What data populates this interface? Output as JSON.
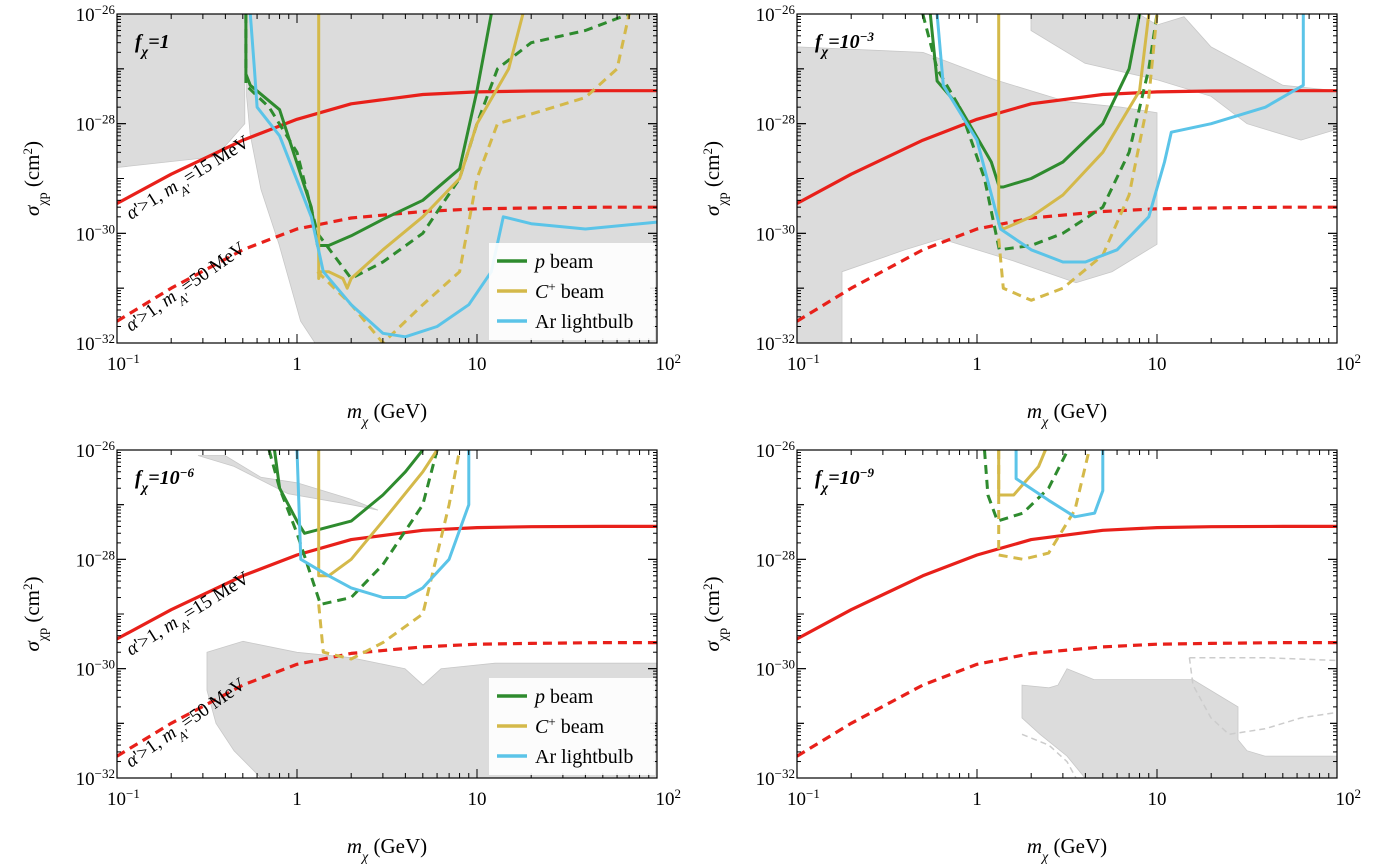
{
  "figure": {
    "xlabel": "m_χ (GeV)",
    "ylabel": "σ_χp (cm²)"
  },
  "legend": {
    "items": [
      {
        "name": "p beam",
        "color": "#2e8b2e"
      },
      {
        "name": "C⁺ beam",
        "color": "#d4b94a"
      },
      {
        "name": "Ar lightbulb",
        "color": "#5bc4e8"
      }
    ]
  },
  "colors": {
    "excluded_region": "#dcdcdc",
    "red_curve": "#e8201a",
    "green": "#2e8b2e",
    "gold": "#d4b94a",
    "blue": "#5bc4e8",
    "faint_dashed": "#cccccc"
  },
  "chart_data": [
    {
      "type": "line",
      "panel_label": "f_χ=1",
      "x_scale": "log",
      "y_scale": "log",
      "xlim": [
        0.1,
        100
      ],
      "ylim": [
        1e-32,
        1e-26
      ],
      "xticks": [
        "10^-1",
        "1",
        "10",
        "10^2"
      ],
      "yticks": [
        "10^-32",
        "10^-30",
        "10^-28",
        "10^-26"
      ],
      "xlabel": "m_χ (GeV)",
      "ylabel": "σ_χp (cm²)",
      "show_legend": true,
      "show_curve_labels": true,
      "curve_labels": [
        "α'>1, m_A'=15 MeV",
        "α'>1, m_A'=50 MeV"
      ],
      "series": [
        {
          "name": "α'>1, m_A'=15 MeV",
          "color": "#e8201a",
          "style": "solid",
          "x": [
            0.1,
            0.2,
            0.5,
            1,
            2,
            5,
            10,
            20,
            50,
            100
          ],
          "y": [
            3.5e-30,
            1.2e-29,
            5e-29,
            1.2e-28,
            2.3e-28,
            3.4e-28,
            3.8e-28,
            3.95e-28,
            4e-28,
            4e-28
          ]
        },
        {
          "name": "α'>1, m_A'=50 MeV",
          "color": "#e8201a",
          "style": "dashed",
          "x": [
            0.1,
            0.2,
            0.5,
            1,
            2,
            5,
            10,
            20,
            50,
            100
          ],
          "y": [
            2.5e-32,
            1e-31,
            5e-31,
            1.2e-30,
            1.9e-30,
            2.5e-30,
            2.8e-30,
            2.9e-30,
            3e-30,
            3e-30
          ]
        },
        {
          "name": "p beam",
          "color": "#2e8b2e",
          "style": "solid",
          "x": [
            0.52,
            0.52,
            0.55,
            0.8,
            1.2,
            1.3,
            1.5,
            2,
            3,
            5,
            8,
            10,
            12
          ],
          "y": [
            1e-26,
            8e-28,
            5e-28,
            1.8e-28,
            3e-30,
            6e-31,
            6e-31,
            9e-31,
            1.8e-30,
            4e-30,
            1.5e-29,
            4e-28,
            1e-26
          ]
        },
        {
          "name": "p beam (dashed)",
          "color": "#2e8b2e",
          "style": "dashed",
          "x": [
            0.52,
            0.52,
            0.7,
            1,
            1.3,
            2,
            3,
            5,
            8,
            10,
            13,
            20,
            40,
            70
          ],
          "y": [
            1e-26,
            5e-28,
            2e-28,
            3e-29,
            1e-30,
            1.5e-31,
            3e-31,
            1e-30,
            1e-29,
            1e-28,
            1e-27,
            3e-27,
            5e-27,
            1e-26
          ]
        },
        {
          "name": "C⁺ beam",
          "color": "#d4b94a",
          "style": "solid",
          "x": [
            1.32,
            1.32,
            1.35,
            1.5,
            1.8,
            1.9,
            2,
            3,
            5,
            8,
            10,
            15,
            18
          ],
          "y": [
            1e-26,
            1.5e-31,
            2e-31,
            2e-31,
            1.5e-31,
            1e-31,
            1.5e-31,
            5e-31,
            2e-30,
            1e-29,
            1e-28,
            1e-27,
            1e-26
          ]
        },
        {
          "name": "C⁺ beam (dashed)",
          "color": "#d4b94a",
          "style": "dashed",
          "x": [
            1.3,
            2,
            3,
            5,
            8,
            10,
            13,
            20,
            40,
            60,
            70
          ],
          "y": [
            2e-31,
            5e-32,
            1e-32,
            5e-32,
            2e-31,
            1e-29,
            1e-28,
            1.5e-28,
            3e-28,
            1e-27,
            1e-26
          ]
        },
        {
          "name": "Ar lightbulb",
          "color": "#5bc4e8",
          "style": "solid",
          "x": [
            0.55,
            0.58,
            0.6,
            0.8,
            1.2,
            1.4,
            2,
            3,
            4,
            6,
            9,
            12,
            14,
            20,
            40,
            100
          ],
          "y": [
            1e-26,
            1e-27,
            2e-28,
            6e-29,
            2e-30,
            2e-31,
            5e-32,
            1.5e-32,
            1.3e-32,
            2e-32,
            5e-32,
            2e-31,
            2e-30,
            1.5e-30,
            1.2e-30,
            1.6e-30
          ]
        }
      ]
    },
    {
      "type": "line",
      "panel_label": "f_χ=10^-3",
      "x_scale": "log",
      "y_scale": "log",
      "xlim": [
        0.1,
        100
      ],
      "ylim": [
        1e-32,
        1e-26
      ],
      "xticks": [
        "10^-1",
        "1",
        "10",
        "10^2"
      ],
      "yticks": [
        "10^-32",
        "10^-30",
        "10^-28",
        "10^-26"
      ],
      "xlabel": "m_χ (GeV)",
      "ylabel": "σ_χp (cm²)",
      "show_legend": false,
      "show_curve_labels": false,
      "series": [
        {
          "name": "α'>1, m_A'=15 MeV",
          "color": "#e8201a",
          "style": "solid",
          "x": [
            0.1,
            0.2,
            0.5,
            1,
            2,
            5,
            10,
            20,
            50,
            100
          ],
          "y": [
            3.5e-30,
            1.2e-29,
            5e-29,
            1.2e-28,
            2.3e-28,
            3.4e-28,
            3.8e-28,
            3.95e-28,
            4e-28,
            4e-28
          ]
        },
        {
          "name": "α'>1, m_A'=50 MeV",
          "color": "#e8201a",
          "style": "dashed",
          "x": [
            0.1,
            0.2,
            0.5,
            1,
            2,
            5,
            10,
            20,
            50,
            100
          ],
          "y": [
            2.5e-32,
            1e-31,
            5e-31,
            1.2e-30,
            1.9e-30,
            2.5e-30,
            2.8e-30,
            2.9e-30,
            3e-30,
            3e-30
          ]
        },
        {
          "name": "p beam",
          "color": "#2e8b2e",
          "style": "solid",
          "x": [
            0.55,
            0.6,
            0.8,
            1.2,
            1.33,
            1.4,
            2,
            3,
            5,
            7,
            8
          ],
          "y": [
            1e-26,
            6e-28,
            2e-28,
            2e-29,
            7e-30,
            7e-30,
            1e-29,
            2e-29,
            1e-28,
            1e-27,
            1e-26
          ]
        },
        {
          "name": "p beam (dashed)",
          "color": "#2e8b2e",
          "style": "dashed",
          "x": [
            0.5,
            0.6,
            0.8,
            1.1,
            1.33,
            2,
            3,
            5,
            7,
            9,
            10
          ],
          "y": [
            1e-26,
            1e-27,
            2e-28,
            1e-29,
            5e-31,
            6e-31,
            1e-30,
            3e-30,
            3e-29,
            1e-27,
            1e-26
          ]
        },
        {
          "name": "C⁺ beam",
          "color": "#d4b94a",
          "style": "solid",
          "x": [
            1.32,
            1.32,
            1.4,
            2,
            3,
            5,
            8,
            9
          ],
          "y": [
            1e-26,
            1.5e-30,
            1.2e-30,
            2e-30,
            5e-30,
            3e-29,
            4e-28,
            1e-26
          ]
        },
        {
          "name": "C⁺ beam (dashed)",
          "color": "#d4b94a",
          "style": "dashed",
          "x": [
            1.32,
            1.4,
            2,
            3,
            5,
            7,
            9,
            10
          ],
          "y": [
            8e-31,
            1e-31,
            6e-32,
            1e-31,
            4e-31,
            5e-30,
            3e-28,
            1e-26
          ]
        },
        {
          "name": "Ar lightbulb",
          "color": "#5bc4e8",
          "style": "solid",
          "x": [
            0.6,
            0.65,
            1,
            1.35,
            2,
            3,
            4,
            6,
            9,
            11,
            12,
            20,
            40,
            65,
            65
          ],
          "y": [
            1e-26,
            5e-28,
            5e-29,
            1.2e-30,
            5e-31,
            3e-31,
            3e-31,
            5e-31,
            2e-30,
            2e-29,
            7e-29,
            1e-28,
            2e-28,
            5e-28,
            1e-26
          ]
        }
      ]
    },
    {
      "type": "line",
      "panel_label": "f_χ=10^-6",
      "x_scale": "log",
      "y_scale": "log",
      "xlim": [
        0.1,
        100
      ],
      "ylim": [
        1e-32,
        1e-26
      ],
      "xticks": [
        "10^-1",
        "1",
        "10",
        "10^2"
      ],
      "yticks": [
        "10^-32",
        "10^-30",
        "10^-28",
        "10^-26"
      ],
      "xlabel": "m_χ (GeV)",
      "ylabel": "σ_χp (cm²)",
      "show_legend": true,
      "show_curve_labels": true,
      "curve_labels": [
        "α'>1, m_A'=15 MeV",
        "α'>1, m_A'=50 MeV"
      ],
      "series": [
        {
          "name": "α'>1, m_A'=15 MeV",
          "color": "#e8201a",
          "style": "solid",
          "x": [
            0.1,
            0.2,
            0.5,
            1,
            2,
            5,
            10,
            20,
            50,
            100
          ],
          "y": [
            3.5e-30,
            1.2e-29,
            5e-29,
            1.2e-28,
            2.3e-28,
            3.4e-28,
            3.8e-28,
            3.95e-28,
            4e-28,
            4e-28
          ]
        },
        {
          "name": "α'>1, m_A'=50 MeV",
          "color": "#e8201a",
          "style": "dashed",
          "x": [
            0.1,
            0.2,
            0.5,
            1,
            2,
            5,
            10,
            20,
            50,
            100
          ],
          "y": [
            2.5e-32,
            1e-31,
            5e-31,
            1.2e-30,
            1.9e-30,
            2.5e-30,
            2.8e-30,
            2.9e-30,
            3e-30,
            3e-30
          ]
        },
        {
          "name": "p beam",
          "color": "#2e8b2e",
          "style": "solid",
          "x": [
            0.75,
            0.8,
            1,
            1.1,
            2,
            3,
            4,
            5
          ],
          "y": [
            1e-26,
            2e-27,
            5e-28,
            3e-28,
            5e-28,
            1.5e-27,
            4e-27,
            1e-26
          ]
        },
        {
          "name": "p beam (dashed)",
          "color": "#2e8b2e",
          "style": "dashed",
          "x": [
            0.7,
            0.8,
            1,
            1.35,
            2,
            3,
            5,
            6
          ],
          "y": [
            1e-26,
            2e-27,
            3e-28,
            1.5e-29,
            2e-29,
            8e-29,
            1e-27,
            1e-26
          ]
        },
        {
          "name": "C⁺ beam",
          "color": "#d4b94a",
          "style": "solid",
          "x": [
            1.32,
            1.32,
            1.5,
            2,
            3,
            5,
            6
          ],
          "y": [
            1e-26,
            5e-29,
            5e-29,
            1e-28,
            5e-28,
            4e-27,
            1e-26
          ]
        },
        {
          "name": "C⁺ beam (dashed)",
          "color": "#d4b94a",
          "style": "dashed",
          "x": [
            1.32,
            1.4,
            2,
            3,
            5,
            7,
            8
          ],
          "y": [
            1.5e-29,
            2e-30,
            1.5e-30,
            3e-30,
            1e-29,
            1e-27,
            1e-26
          ]
        },
        {
          "name": "Ar lightbulb",
          "color": "#5bc4e8",
          "style": "solid",
          "x": [
            1,
            1.05,
            1.5,
            2,
            3,
            4,
            5,
            7,
            9,
            9
          ],
          "y": [
            1e-26,
            1e-28,
            5e-29,
            3e-29,
            2e-29,
            2e-29,
            3e-29,
            1e-28,
            1e-27,
            1e-26
          ]
        }
      ]
    },
    {
      "type": "line",
      "panel_label": "f_χ=10^-9",
      "x_scale": "log",
      "y_scale": "log",
      "xlim": [
        0.1,
        100
      ],
      "ylim": [
        1e-32,
        1e-26
      ],
      "xticks": [
        "10^-1",
        "1",
        "10",
        "10^2"
      ],
      "yticks": [
        "10^-32",
        "10^-30",
        "10^-28",
        "10^-26"
      ],
      "xlabel": "m_χ (GeV)",
      "ylabel": "σ_χp (cm²)",
      "show_legend": false,
      "show_curve_labels": false,
      "series": [
        {
          "name": "α'>1, m_A'=15 MeV",
          "color": "#e8201a",
          "style": "solid",
          "x": [
            0.1,
            0.2,
            0.5,
            1,
            2,
            5,
            10,
            20,
            50,
            100
          ],
          "y": [
            3.5e-30,
            1.2e-29,
            5e-29,
            1.2e-28,
            2.3e-28,
            3.4e-28,
            3.8e-28,
            3.95e-28,
            4e-28,
            4e-28
          ]
        },
        {
          "name": "α'>1, m_A'=50 MeV",
          "color": "#e8201a",
          "style": "dashed",
          "x": [
            0.1,
            0.2,
            0.5,
            1,
            2,
            5,
            10,
            20,
            50,
            100
          ],
          "y": [
            2.5e-32,
            1e-31,
            5e-31,
            1.2e-30,
            1.9e-30,
            2.5e-30,
            2.8e-30,
            2.9e-30,
            3e-30,
            3e-30
          ]
        },
        {
          "name": "p beam (dashed)",
          "color": "#2e8b2e",
          "style": "dashed",
          "x": [
            1.1,
            1.15,
            1.3,
            1.8,
            2.5,
            3.2
          ],
          "y": [
            1e-26,
            1.5e-27,
            5e-28,
            7e-28,
            2e-27,
            1e-26
          ]
        },
        {
          "name": "C⁺ beam",
          "color": "#d4b94a",
          "style": "solid",
          "x": [
            1.32,
            1.32,
            1.6,
            2.2,
            2.4
          ],
          "y": [
            1e-26,
            1.5e-27,
            1.5e-27,
            5e-27,
            1e-26
          ]
        },
        {
          "name": "C⁺ beam (dashed)",
          "color": "#d4b94a",
          "style": "dashed",
          "x": [
            1.32,
            1.32,
            1.8,
            2.5,
            3.5,
            4.2
          ],
          "y": [
            1e-26,
            1.2e-28,
            1e-28,
            1.3e-28,
            8e-28,
            1e-26
          ]
        },
        {
          "name": "Ar lightbulb",
          "color": "#5bc4e8",
          "style": "solid",
          "x": [
            1.65,
            1.65,
            2.5,
            3.5,
            4.5,
            5,
            5
          ],
          "y": [
            1e-26,
            3e-27,
            1.2e-27,
            6e-28,
            7e-28,
            1.8e-27,
            1e-26
          ]
        }
      ]
    }
  ]
}
